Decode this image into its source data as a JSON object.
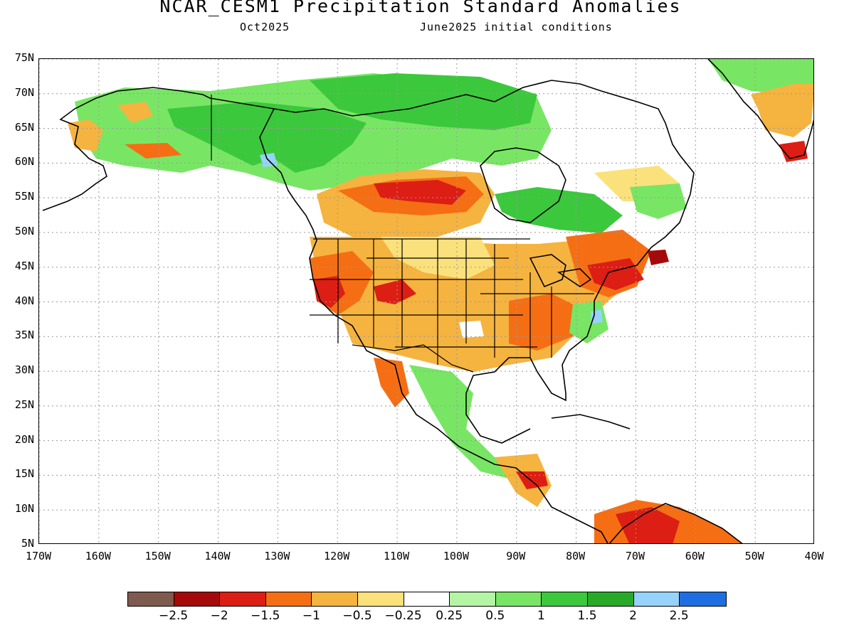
{
  "header": {
    "title": "NCAR_CESM1 Precipitation Standard Anomalies",
    "valid_month": "Oct2025",
    "init_conditions": "June2025 initial conditions"
  },
  "map": {
    "lat_ticks": [
      "75N",
      "70N",
      "65N",
      "60N",
      "55N",
      "50N",
      "45N",
      "40N",
      "35N",
      "30N",
      "25N",
      "20N",
      "15N",
      "10N",
      "5N"
    ],
    "lon_ticks": [
      "170W",
      "160W",
      "150W",
      "140W",
      "130W",
      "120W",
      "110W",
      "100W",
      "90W",
      "80W",
      "70W",
      "60W",
      "50W",
      "40W"
    ],
    "lat_range": [
      5,
      75
    ],
    "lon_range": [
      -170,
      -40
    ]
  },
  "legend": {
    "colors": [
      "#7f5a4f",
      "#a50a0a",
      "#dc1e14",
      "#f56e14",
      "#f5b340",
      "#fbe17c",
      "#ffffff",
      "#b4f5a5",
      "#78e664",
      "#3cc83c",
      "#28aa28",
      "#96d2fa",
      "#1e6ee1"
    ],
    "labels": [
      "−2.5",
      "−2",
      "−1.5",
      "−1",
      "−0.5",
      "−0.25",
      "0.25",
      "0.5",
      "1",
      "1.5",
      "2",
      "2.5"
    ]
  },
  "colors": {
    "green": "#3cc83c",
    "dark_green": "#28aa28",
    "light_green": "#78e664",
    "yellow": "#fbe17c",
    "orange_light": "#f5b340",
    "orange": "#f56e14",
    "red": "#dc1e14",
    "dark_red": "#a50a0a",
    "light_blue": "#96d2fa"
  }
}
